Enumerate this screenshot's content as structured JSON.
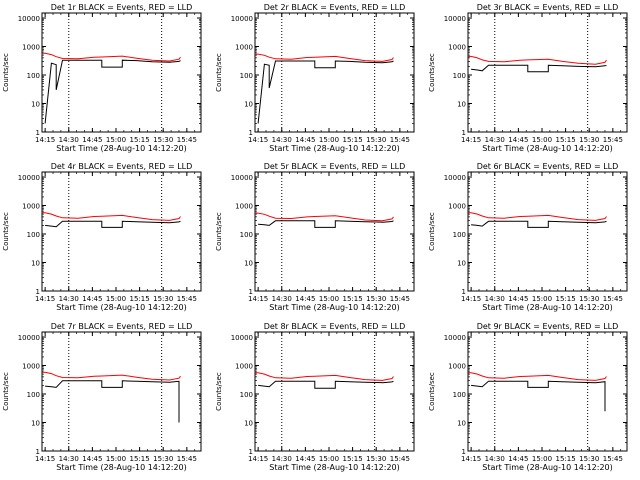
{
  "colors": {
    "events": "#000000",
    "lld": "#ff0000",
    "axis": "#000000",
    "background": "#ffffff"
  },
  "common": {
    "xlabel": "Start Time (28-Aug-10 14:12:20)",
    "ylabel": "Counts/sec",
    "x_tick_labels": [
      "14:15",
      "14:30",
      "14:45",
      "15:00",
      "15:15",
      "15:30",
      "15:45"
    ],
    "y_tick_labels": [
      "1",
      "10",
      "100",
      "1000",
      "10000"
    ],
    "x_range_minutes": [
      0,
      101
    ],
    "y_range": [
      1,
      15000
    ],
    "y_scale": "log",
    "dotted_lines_at": [
      "14:30",
      "15:29"
    ]
  },
  "chart_data": [
    {
      "type": "line",
      "title": "Det 1r BLACK = Events, RED = LLD",
      "x": [
        "14:13",
        "14:14",
        "14:15",
        "14:19",
        "14:22",
        "14:22",
        "14:26",
        "14:36",
        "14:46",
        "14:51",
        "14:51",
        "15:04",
        "15:04",
        "15:13",
        "15:23",
        "15:34",
        "15:40",
        "15:41"
      ],
      "series": [
        {
          "role": "lld",
          "color": "#ff0000",
          "values": [
            560,
            580,
            580,
            520,
            440,
            440,
            380,
            370,
            420,
            430,
            430,
            460,
            460,
            390,
            330,
            310,
            360,
            420
          ]
        },
        {
          "role": "events",
          "color": "#000000",
          "values": [
            null,
            null,
            2,
            260,
            230,
            30,
            330,
            330,
            330,
            330,
            190,
            190,
            330,
            320,
            290,
            280,
            300,
            320
          ]
        }
      ]
    },
    {
      "type": "line",
      "title": "Det 2r BLACK = Events, RED = LLD",
      "x": [
        "14:13",
        "14:14",
        "14:15",
        "14:19",
        "14:22",
        "14:22",
        "14:26",
        "14:36",
        "14:46",
        "14:51",
        "14:51",
        "15:04",
        "15:04",
        "15:13",
        "15:23",
        "15:34",
        "15:40",
        "15:41"
      ],
      "series": [
        {
          "role": "lld",
          "color": "#ff0000",
          "values": [
            520,
            540,
            540,
            490,
            420,
            420,
            370,
            360,
            410,
            420,
            420,
            450,
            450,
            380,
            320,
            300,
            350,
            410
          ]
        },
        {
          "role": "events",
          "color": "#000000",
          "values": [
            null,
            null,
            2,
            240,
            220,
            35,
            310,
            310,
            310,
            310,
            180,
            180,
            310,
            300,
            280,
            270,
            290,
            310
          ]
        }
      ]
    },
    {
      "type": "line",
      "title": "Det 3r BLACK = Events, RED = LLD",
      "x": [
        "14:13",
        "14:14",
        "14:15",
        "14:19",
        "14:22",
        "14:22",
        "14:26",
        "14:36",
        "14:46",
        "14:51",
        "14:51",
        "15:04",
        "15:04",
        "15:13",
        "15:23",
        "15:34",
        "15:40",
        "15:41"
      ],
      "series": [
        {
          "role": "lld",
          "color": "#ff0000",
          "values": [
            430,
            450,
            450,
            400,
            340,
            340,
            300,
            290,
            330,
            340,
            340,
            360,
            360,
            300,
            260,
            240,
            280,
            330
          ]
        },
        {
          "role": "events",
          "color": "#000000",
          "values": [
            null,
            null,
            160,
            150,
            140,
            140,
            220,
            220,
            220,
            220,
            130,
            130,
            220,
            210,
            200,
            195,
            210,
            220
          ]
        }
      ]
    },
    {
      "type": "line",
      "title": "Det 4r BLACK = Events, RED = LLD",
      "x": [
        "14:13",
        "14:14",
        "14:15",
        "14:19",
        "14:22",
        "14:22",
        "14:26",
        "14:36",
        "14:46",
        "14:51",
        "14:51",
        "15:04",
        "15:04",
        "15:13",
        "15:23",
        "15:34",
        "15:40",
        "15:41"
      ],
      "series": [
        {
          "role": "lld",
          "color": "#ff0000",
          "values": [
            540,
            560,
            560,
            500,
            430,
            430,
            370,
            360,
            410,
            420,
            420,
            450,
            450,
            380,
            320,
            300,
            350,
            410
          ]
        },
        {
          "role": "events",
          "color": "#000000",
          "values": [
            null,
            null,
            200,
            190,
            180,
            180,
            280,
            280,
            280,
            280,
            170,
            170,
            280,
            270,
            260,
            250,
            265,
            280
          ]
        }
      ]
    },
    {
      "type": "line",
      "title": "Det 5r BLACK = Events, RED = LLD",
      "x": [
        "14:13",
        "14:14",
        "14:15",
        "14:19",
        "14:22",
        "14:22",
        "14:26",
        "14:36",
        "14:46",
        "14:51",
        "14:51",
        "15:04",
        "15:04",
        "15:13",
        "15:23",
        "15:34",
        "15:40",
        "15:41"
      ],
      "series": [
        {
          "role": "lld",
          "color": "#ff0000",
          "values": [
            520,
            540,
            540,
            490,
            420,
            420,
            360,
            350,
            400,
            410,
            410,
            440,
            440,
            370,
            310,
            290,
            340,
            400
          ]
        },
        {
          "role": "events",
          "color": "#000000",
          "values": [
            null,
            null,
            220,
            210,
            200,
            200,
            290,
            290,
            290,
            290,
            170,
            170,
            290,
            280,
            270,
            260,
            275,
            290
          ]
        }
      ]
    },
    {
      "type": "line",
      "title": "Det 6r BLACK = Events, RED = LLD",
      "x": [
        "14:13",
        "14:14",
        "14:15",
        "14:19",
        "14:22",
        "14:22",
        "14:26",
        "14:36",
        "14:46",
        "14:51",
        "14:51",
        "15:04",
        "15:04",
        "15:13",
        "15:23",
        "15:34",
        "15:40",
        "15:41"
      ],
      "series": [
        {
          "role": "lld",
          "color": "#ff0000",
          "values": [
            540,
            560,
            560,
            500,
            430,
            430,
            370,
            360,
            410,
            420,
            420,
            450,
            450,
            380,
            320,
            300,
            350,
            410
          ]
        },
        {
          "role": "events",
          "color": "#000000",
          "values": [
            null,
            null,
            210,
            200,
            190,
            190,
            280,
            280,
            280,
            280,
            170,
            170,
            280,
            270,
            260,
            250,
            265,
            280
          ]
        }
      ]
    },
    {
      "type": "line",
      "title": "Det 7r BLACK = Events, RED = LLD",
      "x": [
        "14:13",
        "14:14",
        "14:15",
        "14:19",
        "14:22",
        "14:22",
        "14:26",
        "14:36",
        "14:46",
        "14:51",
        "14:51",
        "15:04",
        "15:04",
        "15:13",
        "15:23",
        "15:34",
        "15:40",
        "15:40",
        "15:41"
      ],
      "series": [
        {
          "role": "lld",
          "color": "#ff0000",
          "values": [
            560,
            580,
            580,
            520,
            440,
            440,
            380,
            370,
            420,
            430,
            430,
            460,
            460,
            390,
            330,
            310,
            360,
            360,
            420
          ]
        },
        {
          "role": "events",
          "color": "#000000",
          "values": [
            null,
            null,
            190,
            180,
            170,
            170,
            290,
            290,
            290,
            290,
            170,
            170,
            290,
            280,
            270,
            260,
            280,
            10,
            null
          ]
        }
      ]
    },
    {
      "type": "line",
      "title": "Det 8r BLACK = Events, RED = LLD",
      "x": [
        "14:13",
        "14:14",
        "14:15",
        "14:19",
        "14:22",
        "14:22",
        "14:26",
        "14:36",
        "14:46",
        "14:51",
        "14:51",
        "15:04",
        "15:04",
        "15:13",
        "15:23",
        "15:34",
        "15:40",
        "15:41"
      ],
      "series": [
        {
          "role": "lld",
          "color": "#ff0000",
          "values": [
            540,
            560,
            560,
            500,
            430,
            430,
            370,
            360,
            410,
            420,
            420,
            450,
            450,
            380,
            320,
            300,
            350,
            410
          ]
        },
        {
          "role": "events",
          "color": "#000000",
          "values": [
            null,
            null,
            200,
            190,
            180,
            180,
            280,
            280,
            280,
            280,
            160,
            160,
            280,
            270,
            260,
            250,
            265,
            280
          ]
        }
      ]
    },
    {
      "type": "line",
      "title": "Det 9r BLACK = Events, RED = LLD",
      "x": [
        "14:13",
        "14:14",
        "14:15",
        "14:19",
        "14:22",
        "14:22",
        "14:26",
        "14:36",
        "14:46",
        "14:51",
        "14:51",
        "15:04",
        "15:04",
        "15:13",
        "15:23",
        "15:34",
        "15:40",
        "15:40",
        "15:41"
      ],
      "series": [
        {
          "role": "lld",
          "color": "#ff0000",
          "values": [
            540,
            560,
            560,
            500,
            430,
            430,
            370,
            360,
            410,
            420,
            420,
            450,
            450,
            380,
            320,
            300,
            350,
            350,
            410
          ]
        },
        {
          "role": "events",
          "color": "#000000",
          "values": [
            null,
            null,
            200,
            190,
            180,
            180,
            280,
            280,
            280,
            280,
            170,
            170,
            280,
            270,
            260,
            250,
            270,
            25,
            null
          ]
        }
      ]
    }
  ]
}
